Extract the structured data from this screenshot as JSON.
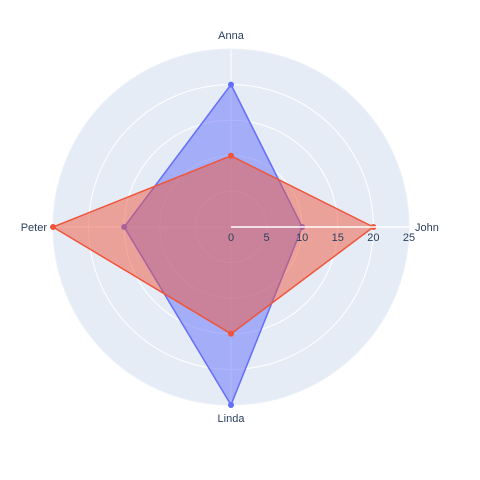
{
  "chart_data": {
    "type": "radar",
    "categories": [
      "John",
      "Anna",
      "Peter",
      "Linda"
    ],
    "series": [
      {
        "values": [
          10,
          20,
          15,
          25
        ],
        "color": "#636efa"
      },
      {
        "values": [
          20,
          10,
          25,
          15
        ],
        "color": "#ef553b"
      }
    ],
    "radial_range": [
      0,
      25
    ],
    "radial_ticks": [
      "0",
      "5",
      "10",
      "15",
      "20",
      "25"
    ],
    "grid": true,
    "colors": {
      "polar_bg": "#e5ecf6",
      "grid": "#ffffff",
      "text": "#2a3f5f"
    }
  }
}
